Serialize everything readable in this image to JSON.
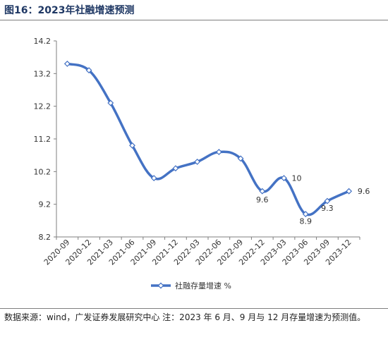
{
  "figure": {
    "title": "图16：2023年社融增速预测",
    "source_text": "数据来源：wind，广发证券发展研究中心      注：2023 年 6 月、9 月与 12 月存量增速为预测值。"
  },
  "chart_data": {
    "type": "line",
    "title": "",
    "xlabel": "",
    "ylabel": "",
    "categories": [
      "2020-09",
      "2020-12",
      "2021-03",
      "2021-06",
      "2021-09",
      "2021-12",
      "2022-03",
      "2022-06",
      "2022-09",
      "2022-12",
      "2023-03",
      "2023-06",
      "2023-09",
      "2023-12"
    ],
    "series": [
      {
        "name": "社融存量增速 %",
        "values": [
          13.5,
          13.3,
          12.3,
          11.0,
          10.0,
          10.3,
          10.5,
          10.8,
          10.6,
          9.6,
          10.0,
          8.9,
          9.3,
          9.6
        ],
        "color": "#4472c4"
      }
    ],
    "ylim": [
      8.2,
      14.2
    ],
    "yticks": [
      "8.2",
      "9.2",
      "10.2",
      "11.2",
      "12.2",
      "13.2",
      "14.2"
    ],
    "data_labels": [
      {
        "index": 9,
        "text": "9.6"
      },
      {
        "index": 10,
        "text": "10"
      },
      {
        "index": 11,
        "text": "8.9"
      },
      {
        "index": 12,
        "text": "9.3"
      },
      {
        "index": 13,
        "text": "9.6"
      }
    ],
    "legend_position": "bottom",
    "grid": false
  }
}
